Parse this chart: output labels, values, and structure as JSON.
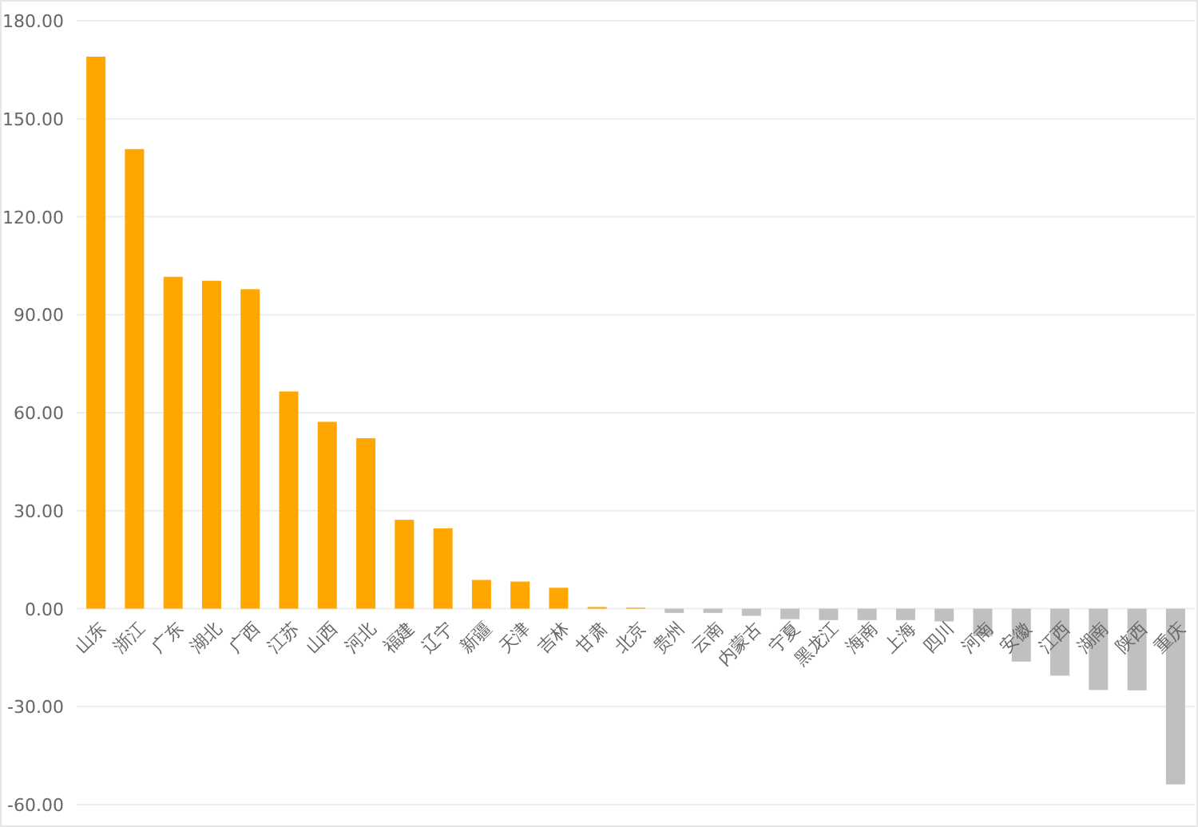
{
  "chart_data": {
    "type": "bar",
    "categories": [
      "山东",
      "浙江",
      "广东",
      "湖北",
      "广西",
      "江苏",
      "山西",
      "河北",
      "福建",
      "辽宁",
      "新疆",
      "天津",
      "吉林",
      "甘肃",
      "北京",
      "贵州",
      "云南",
      "内蒙古",
      "宁夏",
      "黑龙江",
      "海南",
      "上海",
      "四川",
      "河南",
      "安徽",
      "江西",
      "湖南",
      "陕西",
      "重庆"
    ],
    "values": [
      169,
      140.7,
      101.6,
      100.4,
      97.8,
      66.5,
      57.2,
      52.2,
      27.2,
      24.6,
      8.8,
      8.3,
      6.4,
      0.5,
      0.3,
      -1.3,
      -1.3,
      -2.2,
      -3.2,
      -3.5,
      -3.5,
      -3.5,
      -3.9,
      -8.4,
      -16.2,
      -20.5,
      -24.9,
      -25,
      -53.8
    ],
    "colors": [
      "#ffa600",
      "#ffa600",
      "#ffa600",
      "#ffa600",
      "#ffa600",
      "#ffa600",
      "#ffa600",
      "#ffa600",
      "#ffa600",
      "#ffa600",
      "#ffa600",
      "#ffa600",
      "#ffa600",
      "#ffa600",
      "#ffa600",
      "#c0c0c0",
      "#c0c0c0",
      "#c0c0c0",
      "#c0c0c0",
      "#c0c0c0",
      "#c0c0c0",
      "#c0c0c0",
      "#c0c0c0",
      "#c0c0c0",
      "#c0c0c0",
      "#c0c0c0",
      "#c0c0c0",
      "#c0c0c0",
      "#c0c0c0"
    ],
    "ylim": [
      -60,
      180
    ],
    "yticks": [
      {
        "value": -60,
        "label": "-60.00"
      },
      {
        "value": -30,
        "label": "-30.00"
      },
      {
        "value": 0,
        "label": "0.00"
      },
      {
        "value": 30,
        "label": "30.00"
      },
      {
        "value": 60,
        "label": "60.00"
      },
      {
        "value": 90,
        "label": "90.00"
      },
      {
        "value": 120,
        "label": "120.00"
      },
      {
        "value": 150,
        "label": "150.00"
      },
      {
        "value": 180,
        "label": "180.00"
      }
    ],
    "grid": "y"
  }
}
